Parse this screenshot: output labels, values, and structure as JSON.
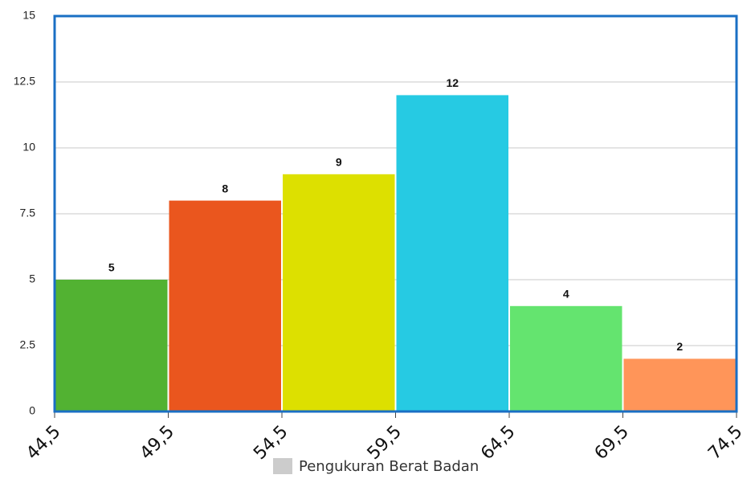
{
  "chart_data": {
    "type": "histogram",
    "bins": [
      44.5,
      49.5,
      54.5,
      59.5,
      64.5,
      69.5,
      74.5
    ],
    "xlim": [
      44.5,
      74.5
    ],
    "xticks": [
      {
        "value": 44.5,
        "label": "44,5"
      },
      {
        "value": 49.5,
        "label": "49,5"
      },
      {
        "value": 54.5,
        "label": "54,5"
      },
      {
        "value": 59.5,
        "label": "59,5"
      },
      {
        "value": 64.5,
        "label": "64,5"
      },
      {
        "value": 69.5,
        "label": "69,5"
      },
      {
        "value": 74.5,
        "label": "74,5"
      }
    ],
    "ylim": [
      0,
      15
    ],
    "yticks": [
      0,
      2.5,
      5,
      7.5,
      10,
      12.5,
      15
    ],
    "grid": true,
    "border_color": "#1a6fc4",
    "legend": "bottom",
    "series": [
      {
        "name": "Pengukuran Berat Badan",
        "color": "#cccccc",
        "values": [
          5,
          8,
          9,
          12,
          4,
          2
        ],
        "bar_colors": [
          "#52b232",
          "#ea561e",
          "#dde000",
          "#26cae3",
          "#64e46f",
          "#ff9559"
        ]
      }
    ]
  }
}
